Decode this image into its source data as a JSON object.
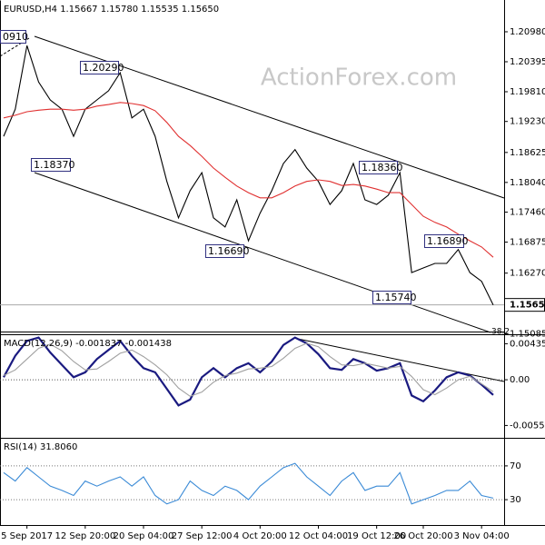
{
  "chart_data": [
    {
      "type": "line",
      "title": "EURUSD,H4  1.15667 1.15780 1.15535 1.15650",
      "watermark": "ActionForex.com",
      "ylim": [
        1.1513,
        1.216
      ],
      "yticks": [
        {
          "value": 1.2098,
          "label": "1.20980"
        },
        1.20395,
        {
          "value": 1.1981,
          "label": "1.19810"
        },
        {
          "value": 1.1923,
          "label": "1.19230"
        },
        1.18625,
        {
          "value": 1.1804,
          "label": "1.18040"
        },
        {
          "value": 1.1746,
          "label": "1.17460"
        },
        1.16875,
        {
          "value": 1.1627,
          "label": "1.16270"
        },
        1.15085
      ],
      "current_price": {
        "value": 1.1565,
        "label": "1.15650"
      },
      "annotations": [
        "0910",
        "1.20290",
        "1.18370",
        "1.16690",
        "1.18360",
        "1.16890",
        "1.15740",
        "38.2"
      ],
      "series": [
        {
          "color": "#000000",
          "values": [
            1.1894,
            1.1947,
            1.2071,
            1.2,
            1.1965,
            1.1947,
            1.1894,
            1.1947,
            1.1965,
            1.1983,
            1.2018,
            1.193,
            1.1947,
            1.1894,
            1.1806,
            1.1735,
            1.1788,
            1.1823,
            1.1735,
            1.1717,
            1.177,
            1.169,
            1.1744,
            1.1788,
            1.1841,
            1.1868,
            1.1832,
            1.1806,
            1.1761,
            1.1788,
            1.1841,
            1.177,
            1.1761,
            1.1779,
            1.1823,
            1.1628,
            1.1637,
            1.1646,
            1.1646,
            1.1673,
            1.1628,
            1.1611,
            1.1565
          ]
        },
        {
          "color": "#e03030",
          "values": [
            1.193,
            1.1935,
            1.1942,
            1.1945,
            1.1947,
            1.1947,
            1.1945,
            1.1947,
            1.1953,
            1.1956,
            1.196,
            1.1958,
            1.1954,
            1.1944,
            1.1921,
            1.1894,
            1.1876,
            1.1855,
            1.1832,
            1.1814,
            1.1797,
            1.1784,
            1.1774,
            1.1774,
            1.1784,
            1.1797,
            1.1806,
            1.1809,
            1.1806,
            1.1798,
            1.18,
            1.1797,
            1.1791,
            1.1784,
            1.1784,
            1.1761,
            1.1738,
            1.1726,
            1.1717,
            1.1703,
            1.169,
            1.1678,
            1.1658
          ]
        }
      ]
    },
    {
      "type": "line",
      "title": "MACD(12,26,9) -0.001837 -0.001438",
      "ylim": [
        -0.0068,
        0.0055
      ],
      "yticks": [
        0.004358,
        {
          "value": 0,
          "label": "0.00"
        },
        -0.005528
      ],
      "zero_line": true,
      "series": [
        {
          "color": "#1a1a80",
          "values": [
            0.0003,
            0.0029,
            0.0047,
            0.0051,
            0.0033,
            0.0018,
            0.0003,
            0.0009,
            0.0025,
            0.0036,
            0.0047,
            0.0029,
            0.0014,
            0.0009,
            -0.0011,
            -0.0031,
            -0.0024,
            0.0003,
            0.0014,
            0.0003,
            0.0014,
            0.002,
            0.0009,
            0.0022,
            0.0042,
            0.0051,
            0.0044,
            0.0031,
            0.0014,
            0.0012,
            0.0025,
            0.002,
            0.0011,
            0.0014,
            0.002,
            -0.0019,
            -0.0026,
            -0.0013,
            0.0003,
            0.0009,
            0.0005,
            -0.0006,
            -0.001837
          ]
        },
        {
          "color": "#a0a0a0",
          "values": [
            0.0005,
            0.0012,
            0.0025,
            0.0038,
            0.0043,
            0.0035,
            0.0022,
            0.0012,
            0.0013,
            0.0022,
            0.0032,
            0.0036,
            0.0028,
            0.0018,
            0.0006,
            -0.001,
            -0.002,
            -0.0015,
            -0.0003,
            0.0005,
            0.0008,
            0.0013,
            0.0014,
            0.0016,
            0.0026,
            0.0038,
            0.0044,
            0.004,
            0.0028,
            0.0018,
            0.0017,
            0.002,
            0.0017,
            0.0014,
            0.0016,
            0.0004,
            -0.0012,
            -0.0018,
            -0.001,
            0.0,
            0.0004,
            -0.0005,
            -0.001438
          ]
        }
      ]
    },
    {
      "type": "line",
      "title": "RSI(14) 31.8060",
      "ylim": [
        0,
        100
      ],
      "yticks": [
        70,
        30
      ],
      "grid": true,
      "categories": [
        null,
        null,
        "5 Sep 2017",
        null,
        null,
        null,
        null,
        "12 Sep 20:00",
        null,
        null,
        null,
        null,
        "20 Sep 04:00",
        null,
        null,
        null,
        null,
        "27 Sep 12:00",
        null,
        null,
        null,
        null,
        "4 Oct 20:00",
        null,
        null,
        null,
        null,
        "12 Oct 04:00",
        null,
        null,
        null,
        null,
        "19 Oct 12:00",
        null,
        null,
        null,
        "26 Oct 20:00",
        null,
        null,
        null,
        null,
        "3 Nov 04:00",
        null
      ],
      "series": [
        {
          "color": "#3a8ad6",
          "values": [
            62,
            52,
            68,
            57,
            46,
            41,
            35,
            52,
            46,
            52,
            57,
            46,
            57,
            35,
            25,
            30,
            52,
            41,
            35,
            46,
            41,
            30,
            46,
            57,
            68,
            73,
            57,
            46,
            35,
            52,
            62,
            41,
            46,
            46,
            62,
            25,
            30,
            35,
            41,
            41,
            52,
            35,
            31.806
          ]
        }
      ]
    }
  ]
}
